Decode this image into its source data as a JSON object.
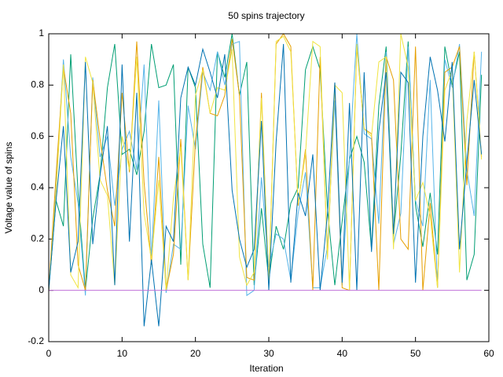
{
  "chart_data": {
    "type": "line",
    "title": "50 spins trajectory",
    "xlabel": "Iteration",
    "ylabel": "Voltage value of spins",
    "x": [
      0,
      1,
      2,
      3,
      4,
      5,
      6,
      7,
      8,
      9,
      10,
      11,
      12,
      13,
      14,
      15,
      16,
      17,
      18,
      19,
      20,
      21,
      22,
      23,
      24,
      25,
      26,
      27,
      28,
      29,
      30,
      31,
      32,
      33,
      34,
      35,
      36,
      37,
      38,
      39,
      40,
      41,
      42,
      43,
      44,
      45,
      46,
      47,
      48,
      49,
      50,
      51,
      52,
      53,
      54,
      55,
      56,
      57,
      58,
      59
    ],
    "xlim": [
      0,
      60
    ],
    "xticks": [
      0,
      10,
      20,
      30,
      40,
      50,
      60
    ],
    "ylim": [
      -0.2,
      1
    ],
    "yticks": [
      -0.2,
      0,
      0.2,
      0.4,
      0.6,
      0.8,
      1
    ],
    "series": [
      {
        "color": "#009e73",
        "values": [
          0.0,
          0.35,
          0.25,
          0.92,
          0.38,
          0.0,
          0.28,
          0.45,
          0.79,
          0.96,
          0.53,
          0.55,
          0.45,
          0.62,
          0.96,
          0.79,
          0.8,
          0.88,
          0.1,
          0.87,
          0.79,
          0.18,
          0.01,
          0.93,
          0.83,
          1.0,
          0.76,
          0.89,
          0.02,
          0.32,
          0.04,
          0.25,
          0.16,
          0.34,
          0.4,
          0.86,
          0.95,
          0.86,
          0.32,
          0.02,
          0.27,
          0.51,
          0.6,
          0.5,
          0.16,
          0.72,
          0.95,
          0.21,
          0.53,
          0.97,
          0.33,
          0.17,
          0.38,
          0.14,
          0.95,
          0.8,
          0.93,
          0.04,
          0.14,
          0.84
        ]
      },
      {
        "color": "#56b4e9",
        "values": [
          0.0,
          0.4,
          0.9,
          0.52,
          0.34,
          -0.02,
          0.83,
          0.52,
          0.6,
          0.33,
          0.55,
          0.62,
          0.47,
          0.88,
          0.12,
          0.74,
          -0.01,
          0.18,
          0.16,
          0.72,
          0.55,
          0.85,
          0.78,
          0.93,
          0.8,
          0.96,
          0.97,
          -0.02,
          0.0,
          0.44,
          0.09,
          0.22,
          0.2,
          0.04,
          0.3,
          0.46,
          0.01,
          0.01,
          0.17,
          0.74,
          0.02,
          0.52,
          1.0,
          0.61,
          0.59,
          0.26,
          0.93,
          0.18,
          0.3,
          0.95,
          0.35,
          0.25,
          0.82,
          0.01,
          0.9,
          0.79,
          0.96,
          0.47,
          0.29,
          0.93
        ]
      },
      {
        "color": "#e69f00",
        "values": [
          0.0,
          0.45,
          0.87,
          0.69,
          0.1,
          0.0,
          0.82,
          0.59,
          0.39,
          0.25,
          0.77,
          0.46,
          0.97,
          0.42,
          0.1,
          0.52,
          0.0,
          0.14,
          0.59,
          0.04,
          0.58,
          0.87,
          0.69,
          0.68,
          0.76,
          0.98,
          0.76,
          0.05,
          0.04,
          0.77,
          0.02,
          0.96,
          1.0,
          0.95,
          0.33,
          0.55,
          0.0,
          0.91,
          0.13,
          0.81,
          0.01,
          0.0,
          0.95,
          0.63,
          0.61,
          0.0,
          0.91,
          0.82,
          0.2,
          0.16,
          0.95,
          0.0,
          0.34,
          0.01,
          0.85,
          0.87,
          0.95,
          0.41,
          0.93,
          0.52
        ]
      },
      {
        "color": "#f0e442",
        "values": [
          0.0,
          0.38,
          0.88,
          0.06,
          0.01,
          0.91,
          0.81,
          0.43,
          0.37,
          0.02,
          0.6,
          0.47,
          0.91,
          0.3,
          0.12,
          0.43,
          0.0,
          0.36,
          0.56,
          0.04,
          0.76,
          0.86,
          0.69,
          0.79,
          0.78,
          0.94,
          0.13,
          0.02,
          0.07,
          0.75,
          0.02,
          0.97,
          0.99,
          0.93,
          0.34,
          0.53,
          0.97,
          0.95,
          0.12,
          0.8,
          0.77,
          0.0,
          0.96,
          0.63,
          0.6,
          0.89,
          0.91,
          0.16,
          1.0,
          0.87,
          0.35,
          0.42,
          0.29,
          0.01,
          0.78,
          0.86,
          0.07,
          0.66,
          0.93,
          0.51
        ]
      },
      {
        "color": "#0072b2",
        "values": [
          0.0,
          0.35,
          0.64,
          0.07,
          0.19,
          0.89,
          0.18,
          0.45,
          0.64,
          0.02,
          0.88,
          0.19,
          0.77,
          -0.14,
          0.12,
          -0.14,
          0.25,
          0.19,
          0.75,
          0.87,
          0.8,
          0.94,
          0.85,
          0.75,
          0.92,
          0.39,
          0.2,
          0.09,
          0.16,
          0.66,
          0.0,
          0.58,
          0.96,
          0.03,
          0.38,
          0.29,
          0.53,
          0.0,
          0.3,
          0.81,
          0.03,
          0.73,
          0.0,
          0.85,
          0.15,
          0.62,
          0.85,
          0.22,
          0.85,
          0.81,
          0.03,
          0.6,
          0.91,
          0.78,
          0.58,
          0.89,
          0.16,
          0.5,
          0.82,
          0.53
        ]
      },
      {
        "color": "#c070d8",
        "values": [
          0,
          0,
          0,
          0,
          0,
          0,
          0,
          0,
          0,
          0,
          0,
          0,
          0,
          0,
          0,
          0,
          0,
          0,
          0,
          0,
          0,
          0,
          0,
          0,
          0,
          0,
          0,
          0,
          0,
          0,
          0,
          0,
          0,
          0,
          0,
          0,
          0,
          0,
          0,
          0,
          0,
          0,
          0,
          0,
          0,
          0,
          0,
          0,
          0,
          0,
          0,
          0,
          0,
          0,
          0,
          0,
          0,
          0,
          0,
          0
        ]
      }
    ]
  }
}
